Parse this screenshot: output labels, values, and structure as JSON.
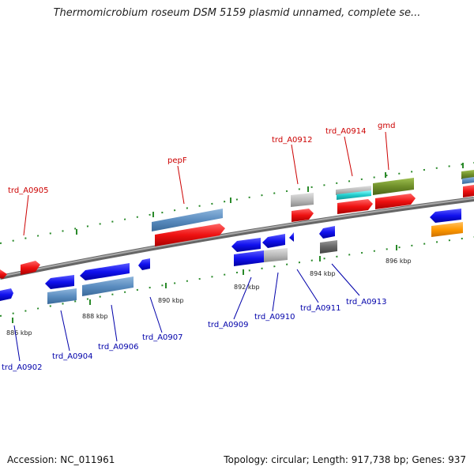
{
  "title": "Thermomicrobium roseum DSM 5159 plasmid unnamed, complete se...",
  "footer": {
    "accession": "Accession: NC_011961",
    "topology": "Topology: circular; Length: 917,738 bp; Genes: 937"
  },
  "ticks": [
    "886 kbp",
    "888 kbp",
    "890 kbp",
    "892 kbp",
    "894 kbp",
    "896 kbp"
  ],
  "gene_labels": {
    "forward": [
      "trd_A0905",
      "pepF",
      "trd_A0912",
      "trd_A0914",
      "gmd"
    ],
    "reverse": [
      "trd_A0902",
      "trd_A0904",
      "trd_A0906",
      "trd_A0907",
      "trd_A0909",
      "trd_A0910",
      "trd_A0911",
      "trd_A0913"
    ]
  },
  "colors": {
    "forward_label": "#cc0000",
    "reverse_label": "#0000aa",
    "cds_forward": "#ee1111",
    "cds_reverse": "#1111ee",
    "steelblue": "#5b8dc0",
    "grey": "#bbbbbb",
    "dark_grey": "#666666",
    "cyan": "#22cccc",
    "olive": "#6f8f2a",
    "orange": "#ff9900",
    "backbone": "#888888",
    "tick": "#2a8a2a"
  }
}
